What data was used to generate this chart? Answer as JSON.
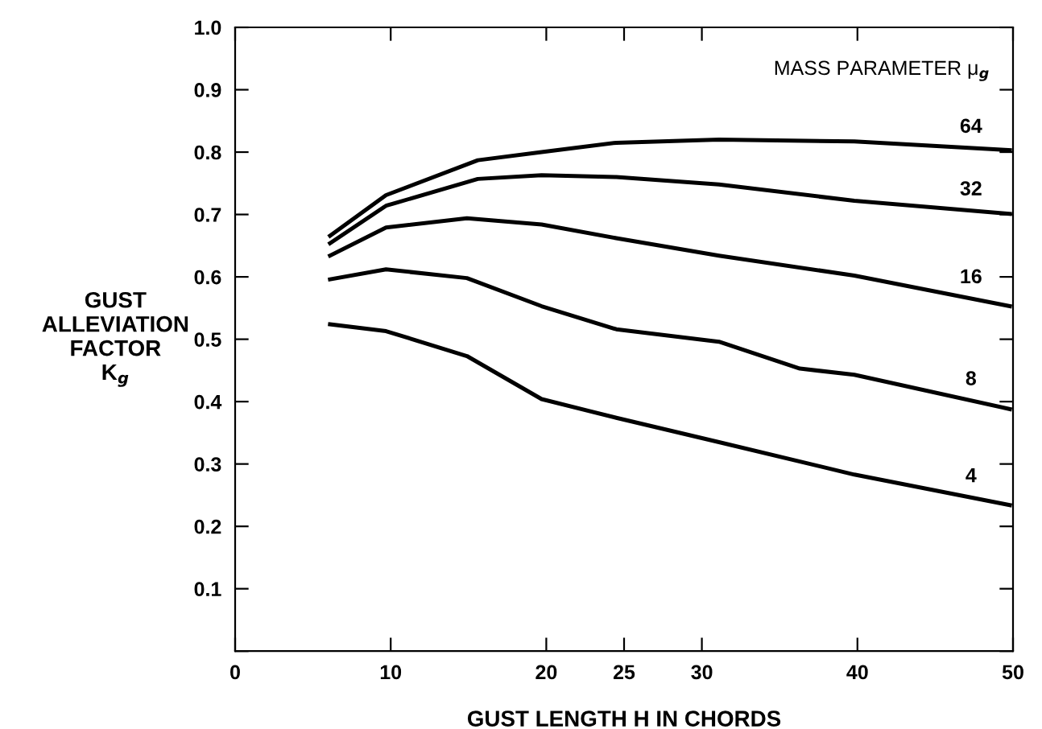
{
  "chart_data": {
    "type": "line",
    "xlabel": "GUST LENGTH H IN CHORDS",
    "ylabel": "GUST\nALLEVIATION\nFACTOR\nK$_{g}$",
    "annotations": [
      "MASS PARAMETER μ$_{g}$"
    ],
    "xlim": [
      0,
      50
    ],
    "ylim": [
      0,
      1.0
    ],
    "xticks": [
      0,
      10,
      20,
      25,
      30,
      40,
      50
    ],
    "yticks": [
      {
        "value": 0,
        "label": null
      },
      0.1,
      0.2,
      0.3,
      0.4,
      0.5,
      0.6,
      0.7,
      0.8,
      0.9,
      {
        "value": 1.0,
        "label": "1.0"
      }
    ],
    "grid": false,
    "legend": "right",
    "marker": "none",
    "line_style": "solid",
    "series": [
      {
        "name": "64",
        "color": "#000000",
        "x": [
          6.1,
          9.7,
          15.6,
          19.7,
          24.5,
          31.1,
          39.8,
          49.8
        ],
        "values": [
          0.666,
          0.731,
          0.787,
          0.8,
          0.815,
          0.82,
          0.817,
          0.803
        ]
      },
      {
        "name": "32",
        "color": "#000000",
        "x": [
          6.1,
          9.7,
          15.6,
          19.7,
          24.5,
          31.1,
          39.8,
          49.8
        ],
        "values": [
          0.654,
          0.714,
          0.757,
          0.763,
          0.76,
          0.748,
          0.722,
          0.701
        ]
      },
      {
        "name": "16",
        "color": "#000000",
        "x": [
          6.1,
          9.7,
          14.9,
          19.7,
          24.5,
          31.1,
          39.8,
          49.8
        ],
        "values": [
          0.634,
          0.679,
          0.694,
          0.684,
          0.662,
          0.634,
          0.602,
          0.553
        ]
      },
      {
        "name": "8",
        "color": "#000000",
        "x": [
          6.1,
          9.7,
          14.9,
          19.7,
          24.5,
          31.1,
          36.3,
          39.8,
          49.8
        ],
        "values": [
          0.596,
          0.612,
          0.598,
          0.553,
          0.516,
          0.496,
          0.453,
          0.443,
          0.388
        ]
      },
      {
        "name": "4",
        "color": "#000000",
        "x": [
          6.1,
          9.7,
          14.9,
          19.7,
          24.5,
          31.1,
          39.8,
          49.8
        ],
        "values": [
          0.524,
          0.513,
          0.473,
          0.404,
          0.374,
          0.335,
          0.283,
          0.234
        ]
      }
    ]
  }
}
